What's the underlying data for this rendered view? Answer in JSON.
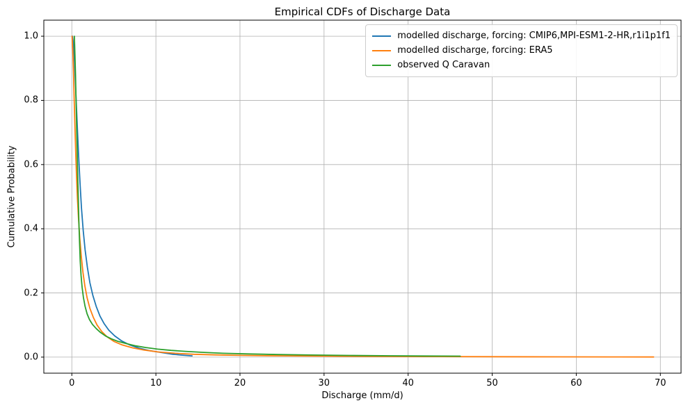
{
  "chart_data": {
    "type": "line",
    "title": "Empirical CDFs of Discharge Data",
    "xlabel": "Discharge (mm/d)",
    "ylabel": "Cumulative Probability",
    "xlim": [
      -3.33,
      72.46
    ],
    "ylim": [
      -0.05,
      1.05
    ],
    "grid": true,
    "legend_position": "upper right",
    "x_ticks": [
      {
        "value": 0,
        "label": "0"
      },
      {
        "value": 10,
        "label": "10"
      },
      {
        "value": 20,
        "label": "20"
      },
      {
        "value": 30,
        "label": "30"
      },
      {
        "value": 40,
        "label": "40"
      },
      {
        "value": 50,
        "label": "50"
      },
      {
        "value": 60,
        "label": "60"
      },
      {
        "value": 70,
        "label": "70"
      }
    ],
    "y_ticks": [
      {
        "value": 0.0,
        "label": "0.0"
      },
      {
        "value": 0.2,
        "label": "0.2"
      },
      {
        "value": 0.4,
        "label": "0.4"
      },
      {
        "value": 0.6,
        "label": "0.6"
      },
      {
        "value": 0.8,
        "label": "0.8"
      },
      {
        "value": 1.0,
        "label": "1.0"
      }
    ],
    "series": [
      {
        "name": "modelled discharge, forcing: CMIP6,MPI-ESM1-2-HR,r1i1p1f1",
        "color": "#1f77b4",
        "points": [
          [
            0.08,
            1.0
          ],
          [
            0.18,
            0.98
          ],
          [
            0.3,
            0.93
          ],
          [
            0.42,
            0.86
          ],
          [
            0.55,
            0.78
          ],
          [
            0.68,
            0.7
          ],
          [
            0.82,
            0.62
          ],
          [
            0.98,
            0.54
          ],
          [
            1.15,
            0.465
          ],
          [
            1.35,
            0.395
          ],
          [
            1.58,
            0.335
          ],
          [
            1.85,
            0.28
          ],
          [
            2.15,
            0.232
          ],
          [
            2.5,
            0.192
          ],
          [
            2.9,
            0.158
          ],
          [
            3.35,
            0.128
          ],
          [
            3.85,
            0.104
          ],
          [
            4.4,
            0.084
          ],
          [
            5.1,
            0.066
          ],
          [
            5.9,
            0.051
          ],
          [
            6.9,
            0.038
          ],
          [
            8.0,
            0.028
          ],
          [
            9.3,
            0.02
          ],
          [
            10.7,
            0.014
          ],
          [
            12.0,
            0.009
          ],
          [
            13.2,
            0.006
          ],
          [
            14.3,
            0.004
          ]
        ]
      },
      {
        "name": "modelled discharge, forcing: ERA5",
        "color": "#ff7f0e",
        "points": [
          [
            0.03,
            1.0
          ],
          [
            0.12,
            0.955
          ],
          [
            0.2,
            0.885
          ],
          [
            0.28,
            0.805
          ],
          [
            0.37,
            0.72
          ],
          [
            0.46,
            0.64
          ],
          [
            0.56,
            0.565
          ],
          [
            0.67,
            0.495
          ],
          [
            0.8,
            0.43
          ],
          [
            0.95,
            0.37
          ],
          [
            1.12,
            0.315
          ],
          [
            1.32,
            0.265
          ],
          [
            1.55,
            0.222
          ],
          [
            1.82,
            0.185
          ],
          [
            2.15,
            0.152
          ],
          [
            2.55,
            0.124
          ],
          [
            3.0,
            0.1
          ],
          [
            3.55,
            0.08
          ],
          [
            4.2,
            0.063
          ],
          [
            5.0,
            0.049
          ],
          [
            6.0,
            0.038
          ],
          [
            7.2,
            0.029
          ],
          [
            8.6,
            0.022
          ],
          [
            10.3,
            0.016
          ],
          [
            12.3,
            0.012
          ],
          [
            14.5,
            0.009
          ],
          [
            17.0,
            0.007
          ],
          [
            20.0,
            0.0055
          ],
          [
            24.0,
            0.0042
          ],
          [
            29.0,
            0.0032
          ],
          [
            35.0,
            0.0024
          ],
          [
            42.0,
            0.0018
          ],
          [
            50.0,
            0.0013
          ],
          [
            58.0,
            0.0009
          ],
          [
            64.0,
            0.0007
          ],
          [
            69.2,
            0.0005
          ]
        ]
      },
      {
        "name": "observed Q Caravan",
        "color": "#2ca02c",
        "points": [
          [
            0.3,
            1.0
          ],
          [
            0.37,
            0.945
          ],
          [
            0.44,
            0.875
          ],
          [
            0.5,
            0.8
          ],
          [
            0.57,
            0.72
          ],
          [
            0.63,
            0.645
          ],
          [
            0.7,
            0.565
          ],
          [
            0.77,
            0.49
          ],
          [
            0.84,
            0.42
          ],
          [
            0.92,
            0.355
          ],
          [
            1.0,
            0.3
          ],
          [
            1.1,
            0.255
          ],
          [
            1.22,
            0.218
          ],
          [
            1.38,
            0.186
          ],
          [
            1.58,
            0.158
          ],
          [
            1.82,
            0.135
          ],
          [
            2.1,
            0.117
          ],
          [
            2.45,
            0.102
          ],
          [
            2.9,
            0.089
          ],
          [
            3.4,
            0.077
          ],
          [
            4.0,
            0.066
          ],
          [
            4.7,
            0.057
          ],
          [
            5.5,
            0.049
          ],
          [
            6.5,
            0.042
          ],
          [
            7.6,
            0.035
          ],
          [
            8.8,
            0.03
          ],
          [
            10.2,
            0.025
          ],
          [
            11.8,
            0.021
          ],
          [
            13.5,
            0.018
          ],
          [
            15.5,
            0.015
          ],
          [
            18.0,
            0.012
          ],
          [
            21.0,
            0.01
          ],
          [
            24.5,
            0.008
          ],
          [
            28.5,
            0.0065
          ],
          [
            33.0,
            0.0052
          ],
          [
            38.0,
            0.0042
          ],
          [
            42.0,
            0.0035
          ],
          [
            46.2,
            0.003
          ]
        ]
      }
    ]
  },
  "colors": {
    "grid": "#b0b0b0",
    "spine": "#000000",
    "legend_border": "#cccccc",
    "text": "#000000",
    "background": "#ffffff"
  }
}
